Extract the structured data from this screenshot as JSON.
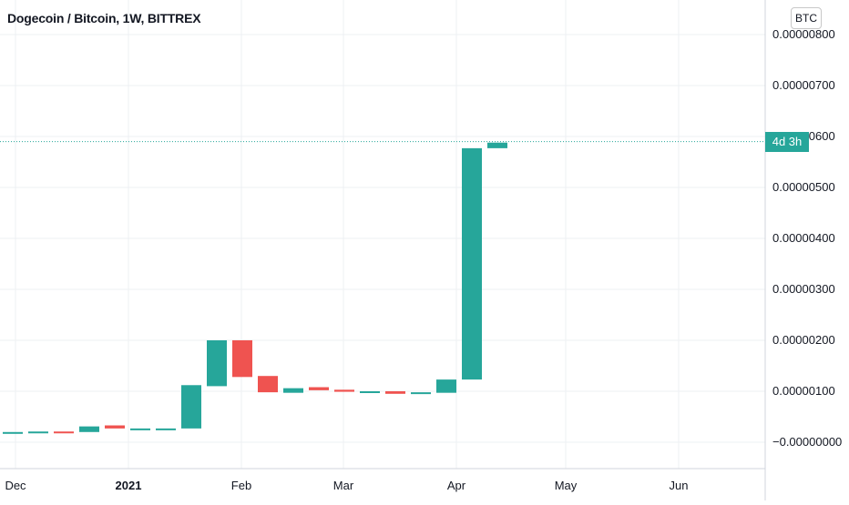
{
  "title": "Dogecoin / Bitcoin, 1W, BITTREX",
  "currency_button": "BTC",
  "countdown": "4d 3h",
  "colors": {
    "up": "#26a69a",
    "down": "#ef5350",
    "grid": "#eef0f3",
    "axis_border": "#d1d4dc"
  },
  "chart_data": {
    "type": "candlestick",
    "title": "Dogecoin / Bitcoin, 1W, BITTREX",
    "last_price": 5.9e-06,
    "ylim": [
      -2e-07,
      8.5e-06
    ],
    "y_tick_labels": [
      "0.00000800",
      "0.00000700",
      "0.00000600",
      "0.00000500",
      "0.00000400",
      "0.00000300",
      "0.00000200",
      "0.00000100",
      "−0.00000000"
    ],
    "y_tick_values": [
      8e-06,
      7e-06,
      6e-06,
      5e-06,
      4e-06,
      3e-06,
      2e-06,
      1e-06,
      0
    ],
    "x_tick_labels": [
      {
        "label": "Dec",
        "date": "2020-12-01",
        "bold": false
      },
      {
        "label": "2021",
        "date": "2021-01-01",
        "bold": true
      },
      {
        "label": "Feb",
        "date": "2021-02-01",
        "bold": false
      },
      {
        "label": "Mar",
        "date": "2021-03-01",
        "bold": false
      },
      {
        "label": "Apr",
        "date": "2021-04-01",
        "bold": false
      },
      {
        "label": "May",
        "date": "2021-05-01",
        "bold": false
      },
      {
        "label": "Jun",
        "date": "2021-06-01",
        "bold": false
      }
    ],
    "candles": [
      {
        "date": "2020-11-30",
        "open": 1.9e-07,
        "close": 2e-07
      },
      {
        "date": "2020-12-07",
        "open": 2e-07,
        "close": 2.1e-07
      },
      {
        "date": "2020-12-14",
        "open": 2.1e-07,
        "close": 2e-07
      },
      {
        "date": "2020-12-21",
        "open": 2e-07,
        "close": 3.1e-07
      },
      {
        "date": "2020-12-28",
        "open": 3.3e-07,
        "close": 2.7e-07
      },
      {
        "date": "2021-01-04",
        "open": 2.6e-07,
        "close": 2.7e-07
      },
      {
        "date": "2021-01-11",
        "open": 2.6e-07,
        "close": 2.7e-07
      },
      {
        "date": "2021-01-18",
        "open": 2.7e-07,
        "close": 1.12e-06
      },
      {
        "date": "2021-01-25",
        "open": 1.1e-06,
        "close": 2e-06
      },
      {
        "date": "2021-02-01",
        "open": 2e-06,
        "close": 1.28e-06
      },
      {
        "date": "2021-02-08",
        "open": 1.3e-06,
        "close": 9.8e-07
      },
      {
        "date": "2021-02-15",
        "open": 9.7e-07,
        "close": 1.06e-06
      },
      {
        "date": "2021-02-22",
        "open": 1.08e-06,
        "close": 1.02e-06
      },
      {
        "date": "2021-03-01",
        "open": 1.03e-06,
        "close": 9.9e-07
      },
      {
        "date": "2021-03-08",
        "open": 9.9e-07,
        "close": 1e-06
      },
      {
        "date": "2021-03-15",
        "open": 1e-06,
        "close": 9.5e-07
      },
      {
        "date": "2021-03-22",
        "open": 9.5e-07,
        "close": 9.8e-07
      },
      {
        "date": "2021-03-29",
        "open": 9.7e-07,
        "close": 1.23e-06
      },
      {
        "date": "2021-04-05",
        "open": 1.23e-06,
        "close": 5.77e-06
      },
      {
        "date": "2021-04-12",
        "open": 5.77e-06,
        "close": 5.88e-06
      }
    ]
  }
}
